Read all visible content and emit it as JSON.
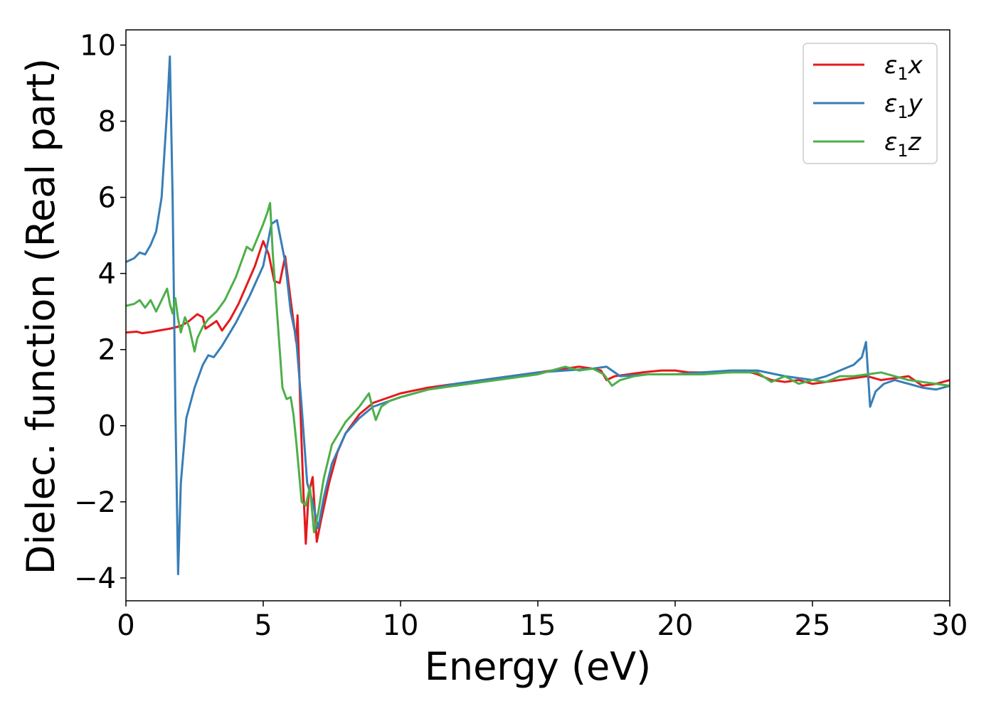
{
  "chart_data": {
    "type": "line",
    "title": "",
    "xlabel": "Energy (eV)",
    "ylabel": "Dielec. function (Real part)",
    "xlim": [
      0,
      30
    ],
    "ylim": [
      -4.6,
      10.4
    ],
    "xticks": [
      0,
      5,
      10,
      15,
      20,
      25,
      30
    ],
    "yticks": [
      -4,
      -2,
      0,
      2,
      4,
      6,
      8,
      10
    ],
    "xtick_labels": [
      "0",
      "5",
      "10",
      "15",
      "20",
      "25",
      "30"
    ],
    "ytick_labels": [
      "−4",
      "−2",
      "0",
      "2",
      "4",
      "6",
      "8",
      "10"
    ],
    "grid": false,
    "legend_position": "top-right",
    "series": [
      {
        "name": "ε₁x",
        "legend_base": "ε",
        "legend_sub": "1",
        "legend_var": "x",
        "color": "#e41a1c",
        "x": [
          0,
          0.4,
          0.6,
          0.9,
          1.2,
          1.6,
          2.0,
          2.3,
          2.6,
          2.8,
          2.9,
          3.1,
          3.3,
          3.5,
          3.8,
          4.1,
          4.4,
          4.7,
          5.0,
          5.2,
          5.4,
          5.6,
          5.8,
          6.0,
          6.2,
          6.25,
          6.35,
          6.45,
          6.55,
          6.65,
          6.8,
          6.95,
          7.1,
          7.4,
          7.7,
          8.0,
          8.5,
          9.0,
          10,
          11,
          12,
          13,
          14,
          15,
          15.5,
          16,
          16.5,
          17,
          17.3,
          17.5,
          17.8,
          18.3,
          18.8,
          19.5,
          20,
          20.5,
          21,
          21.5,
          22,
          22.5,
          23,
          23.5,
          24,
          24.5,
          25,
          25.5,
          26,
          26.5,
          27,
          27.5,
          28,
          28.5,
          29,
          29.5,
          30
        ],
        "values": [
          2.45,
          2.47,
          2.43,
          2.46,
          2.5,
          2.55,
          2.62,
          2.75,
          2.93,
          2.85,
          2.55,
          2.65,
          2.75,
          2.5,
          2.8,
          3.2,
          3.7,
          4.2,
          4.85,
          4.5,
          3.8,
          3.75,
          4.45,
          3.3,
          2.2,
          2.9,
          0.5,
          -1.5,
          -3.1,
          -1.8,
          -1.35,
          -3.05,
          -2.5,
          -1.5,
          -0.7,
          -0.2,
          0.3,
          0.6,
          0.85,
          1.0,
          1.1,
          1.2,
          1.3,
          1.4,
          1.45,
          1.5,
          1.55,
          1.5,
          1.45,
          1.2,
          1.3,
          1.35,
          1.4,
          1.45,
          1.45,
          1.4,
          1.4,
          1.4,
          1.4,
          1.45,
          1.35,
          1.2,
          1.15,
          1.2,
          1.1,
          1.15,
          1.2,
          1.25,
          1.3,
          1.2,
          1.25,
          1.3,
          1.05,
          1.1,
          1.2
        ]
      },
      {
        "name": "ε₁y",
        "legend_base": "ε",
        "legend_sub": "1",
        "legend_var": "y",
        "color": "#377eb8",
        "x": [
          0,
          0.3,
          0.5,
          0.7,
          0.9,
          1.1,
          1.3,
          1.5,
          1.6,
          1.7,
          1.8,
          1.9,
          2.0,
          2.2,
          2.5,
          2.8,
          3.0,
          3.2,
          3.5,
          4.0,
          4.5,
          5.0,
          5.3,
          5.5,
          5.8,
          6.0,
          6.2,
          6.4,
          6.6,
          6.8,
          7.0,
          7.2,
          7.5,
          8.0,
          8.5,
          9.0,
          10,
          11,
          12,
          13,
          14,
          15,
          16,
          17,
          17.5,
          18,
          19,
          20,
          21,
          22,
          23,
          24,
          25,
          25.5,
          26,
          26.5,
          26.8,
          26.95,
          27.1,
          27.3,
          27.6,
          28,
          28.5,
          29,
          29.5,
          30
        ],
        "values": [
          4.3,
          4.4,
          4.55,
          4.5,
          4.75,
          5.1,
          6.0,
          8.3,
          9.7,
          6.0,
          0.5,
          -3.9,
          -1.5,
          0.2,
          1.0,
          1.6,
          1.85,
          1.8,
          2.1,
          2.7,
          3.4,
          4.2,
          5.3,
          5.4,
          4.3,
          3.0,
          2.3,
          0.5,
          -1.5,
          -2.0,
          -2.7,
          -1.9,
          -1.0,
          -0.2,
          0.2,
          0.5,
          0.75,
          0.95,
          1.1,
          1.2,
          1.3,
          1.4,
          1.45,
          1.5,
          1.55,
          1.3,
          1.35,
          1.35,
          1.4,
          1.45,
          1.45,
          1.3,
          1.2,
          1.3,
          1.45,
          1.6,
          1.8,
          2.2,
          0.5,
          0.9,
          1.1,
          1.2,
          1.1,
          1.0,
          0.95,
          1.05
        ]
      },
      {
        "name": "ε₁z",
        "legend_base": "ε",
        "legend_sub": "1",
        "legend_var": "z",
        "color": "#4daf4a",
        "x": [
          0,
          0.3,
          0.5,
          0.7,
          0.9,
          1.1,
          1.3,
          1.5,
          1.6,
          1.7,
          1.8,
          1.9,
          2.0,
          2.15,
          2.3,
          2.5,
          2.6,
          2.8,
          3.0,
          3.3,
          3.6,
          4.0,
          4.4,
          4.6,
          4.8,
          5.0,
          5.15,
          5.25,
          5.35,
          5.5,
          5.7,
          5.85,
          6.0,
          6.1,
          6.2,
          6.4,
          6.55,
          6.7,
          6.85,
          7.0,
          7.2,
          7.5,
          8.0,
          8.5,
          8.85,
          9.0,
          9.1,
          9.3,
          9.6,
          10,
          11,
          12,
          13,
          14,
          15,
          15.5,
          16,
          16.5,
          17,
          17.4,
          17.7,
          18,
          18.5,
          19,
          20,
          21,
          22,
          23,
          23.5,
          24,
          24.5,
          25,
          25.5,
          26,
          26.5,
          27,
          27.5,
          28,
          28.5,
          29,
          29.5,
          30
        ],
        "values": [
          3.15,
          3.2,
          3.3,
          3.1,
          3.3,
          3.0,
          3.3,
          3.6,
          3.2,
          2.95,
          3.35,
          2.8,
          2.45,
          2.85,
          2.6,
          1.95,
          2.3,
          2.6,
          2.8,
          3.0,
          3.3,
          3.9,
          4.7,
          4.6,
          4.95,
          5.3,
          5.6,
          5.85,
          4.5,
          3.0,
          1.0,
          0.7,
          0.75,
          0.3,
          -0.4,
          -2.0,
          -2.1,
          -1.6,
          -2.8,
          -2.3,
          -1.4,
          -0.5,
          0.1,
          0.5,
          0.85,
          0.4,
          0.15,
          0.5,
          0.65,
          0.75,
          0.95,
          1.05,
          1.15,
          1.25,
          1.35,
          1.45,
          1.55,
          1.45,
          1.5,
          1.35,
          1.05,
          1.2,
          1.3,
          1.35,
          1.35,
          1.35,
          1.4,
          1.4,
          1.15,
          1.3,
          1.1,
          1.2,
          1.15,
          1.3,
          1.3,
          1.35,
          1.4,
          1.3,
          1.2,
          1.15,
          1.1,
          1.05
        ]
      }
    ]
  }
}
